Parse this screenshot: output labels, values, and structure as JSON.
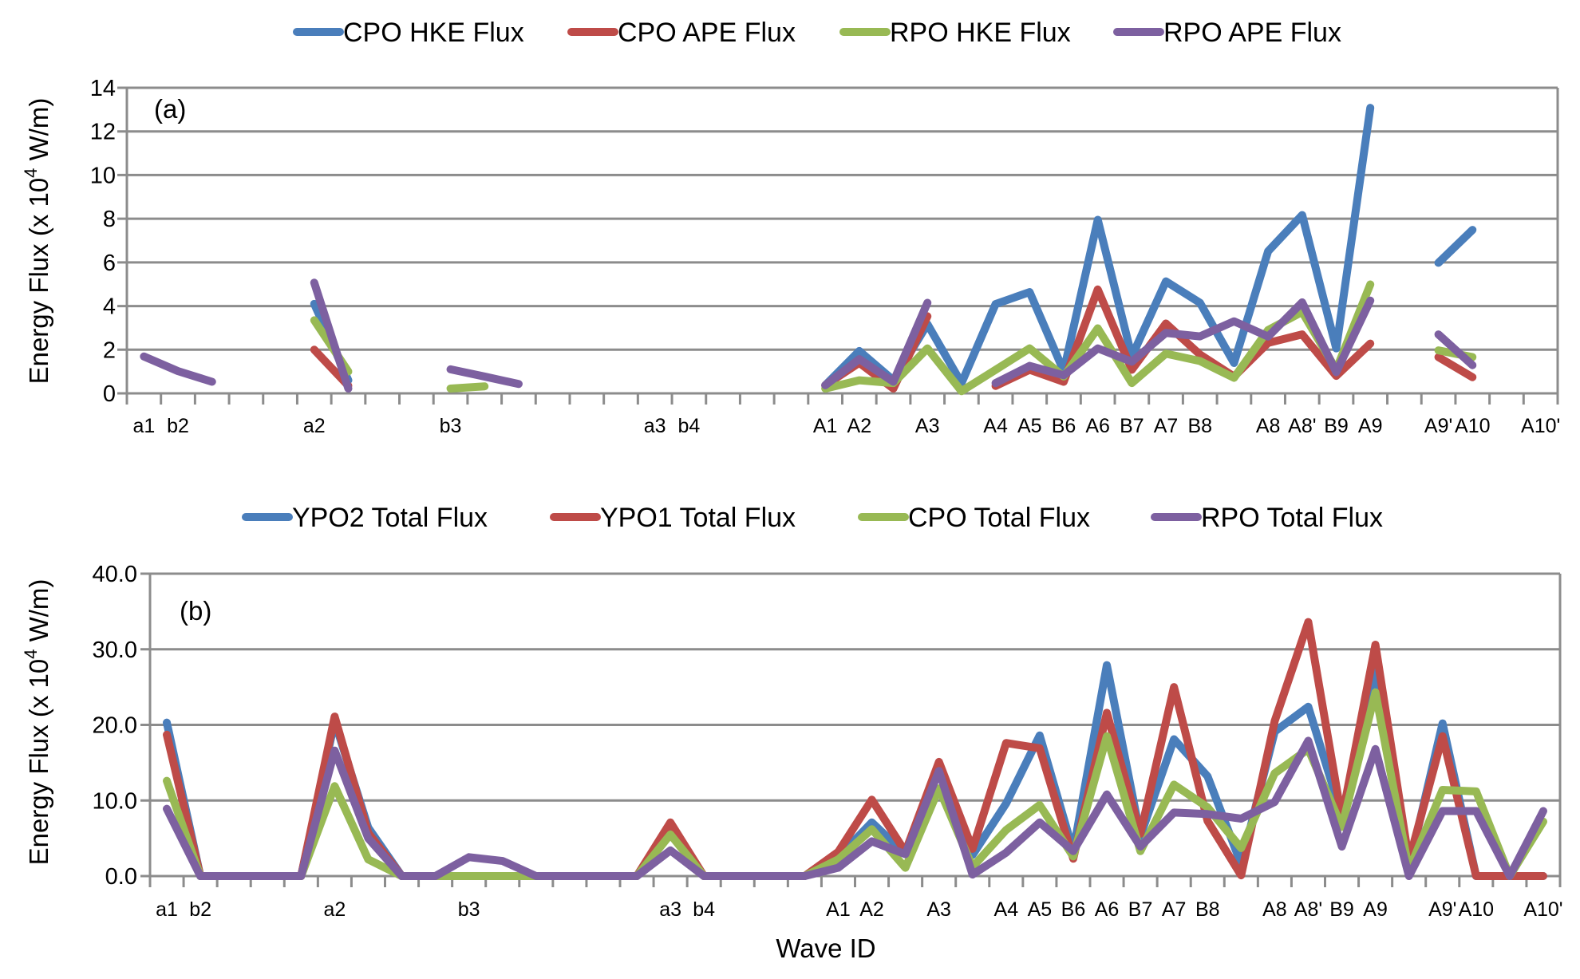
{
  "chart_data": [
    {
      "type": "line",
      "panel_label": "(a)",
      "title": "",
      "xlabel": "",
      "ylabel": "Energy Flux (x 10^4 W/m)",
      "ylabel_parts": {
        "pre": "Energy Flux (x 10",
        "sup": "4",
        "post": " W/m)"
      },
      "ylim": [
        0,
        14
      ],
      "yticks": [
        0,
        2,
        4,
        6,
        8,
        10,
        12,
        14
      ],
      "ytick_labels": [
        "0",
        "2",
        "4",
        "6",
        "8",
        "10",
        "12",
        "14"
      ],
      "grid": true,
      "legend_position": "top",
      "category_count": 42,
      "x_tick_labels": [
        {
          "index": 0,
          "label": "a1"
        },
        {
          "index": 1,
          "label": "b2"
        },
        {
          "index": 5,
          "label": "a2"
        },
        {
          "index": 9,
          "label": "b3"
        },
        {
          "index": 15,
          "label": "a3"
        },
        {
          "index": 16,
          "label": "b4"
        },
        {
          "index": 20,
          "label": "A1"
        },
        {
          "index": 21,
          "label": "A2"
        },
        {
          "index": 23,
          "label": "A3"
        },
        {
          "index": 25,
          "label": "A4"
        },
        {
          "index": 26,
          "label": "A5"
        },
        {
          "index": 27,
          "label": "B6"
        },
        {
          "index": 28,
          "label": "A6"
        },
        {
          "index": 29,
          "label": "B7"
        },
        {
          "index": 30,
          "label": "A7"
        },
        {
          "index": 31,
          "label": "B8"
        },
        {
          "index": 33,
          "label": "A8"
        },
        {
          "index": 34,
          "label": "A8'"
        },
        {
          "index": 35,
          "label": "B9"
        },
        {
          "index": 36,
          "label": "A9"
        },
        {
          "index": 38,
          "label": "A9'"
        },
        {
          "index": 39,
          "label": "A10"
        },
        {
          "index": 41,
          "label": "A10'"
        }
      ],
      "series": [
        {
          "name": "CPO HKE Flux",
          "color": "#4a7ebb",
          "values": [
            null,
            null,
            null,
            null,
            null,
            4.1,
            0.6,
            null,
            null,
            null,
            null,
            null,
            null,
            null,
            null,
            null,
            null,
            null,
            null,
            null,
            0.37,
            1.94,
            0.6,
            3.17,
            0.47,
            4.09,
            4.64,
            1.02,
            7.95,
            1.69,
            5.13,
            4.15,
            1.39,
            6.51,
            8.17,
            2.06,
            13.08,
            null,
            5.98,
            7.49,
            null,
            null
          ]
        },
        {
          "name": "CPO APE Flux",
          "color": "#be4b48",
          "values": [
            null,
            null,
            null,
            null,
            null,
            2.0,
            0.35,
            null,
            null,
            null,
            null,
            null,
            null,
            null,
            null,
            null,
            null,
            null,
            null,
            null,
            0.37,
            1.4,
            0.22,
            3.53,
            null,
            0.34,
            1.08,
            0.53,
            4.76,
            1.08,
            3.2,
            1.78,
            0.77,
            2.31,
            2.7,
            0.8,
            2.28,
            null,
            1.66,
            0.74,
            null,
            null
          ]
        },
        {
          "name": "RPO HKE Flux",
          "color": "#98b954",
          "values": [
            null,
            null,
            null,
            null,
            null,
            3.35,
            1.0,
            null,
            null,
            0.22,
            0.32,
            null,
            null,
            null,
            null,
            null,
            null,
            null,
            null,
            null,
            0.22,
            0.6,
            0.47,
            2.06,
            0.1,
            1.08,
            2.06,
            0.77,
            2.98,
            0.47,
            1.82,
            1.48,
            0.71,
            2.9,
            3.73,
            1.08,
            4.99,
            null,
            1.97,
            1.66,
            null,
            null
          ]
        },
        {
          "name": "RPO APE Flux",
          "color": "#7d60a0",
          "values": [
            1.69,
            1.02,
            0.53,
            null,
            null,
            5.07,
            0.22,
            null,
            null,
            1.1,
            0.77,
            0.43,
            null,
            null,
            null,
            null,
            null,
            null,
            null,
            null,
            0.37,
            1.57,
            0.53,
            4.15,
            null,
            0.47,
            1.26,
            0.83,
            2.06,
            1.45,
            2.77,
            2.61,
            3.3,
            2.6,
            4.17,
            0.97,
            4.25,
            null,
            2.7,
            1.29,
            null,
            null
          ]
        }
      ]
    },
    {
      "type": "line",
      "panel_label": "(b)",
      "title": "",
      "xlabel": "Wave ID",
      "ylabel": "Energy Flux (x 10^4 W/m)",
      "ylabel_parts": {
        "pre": "Energy Flux (x 10",
        "sup": "4",
        "post": " W/m)"
      },
      "ylim": [
        0,
        40
      ],
      "yticks": [
        0,
        10,
        20,
        30,
        40
      ],
      "ytick_labels": [
        "0.0",
        "10.0",
        "20.0",
        "30.0",
        "40.0"
      ],
      "grid": true,
      "legend_position": "top",
      "category_count": 42,
      "x_tick_labels": [
        {
          "index": 0,
          "label": "a1"
        },
        {
          "index": 1,
          "label": "b2"
        },
        {
          "index": 5,
          "label": "a2"
        },
        {
          "index": 9,
          "label": "b3"
        },
        {
          "index": 15,
          "label": "a3"
        },
        {
          "index": 16,
          "label": "b4"
        },
        {
          "index": 20,
          "label": "A1"
        },
        {
          "index": 21,
          "label": "A2"
        },
        {
          "index": 23,
          "label": "A3"
        },
        {
          "index": 25,
          "label": "A4"
        },
        {
          "index": 26,
          "label": "A5"
        },
        {
          "index": 27,
          "label": "B6"
        },
        {
          "index": 28,
          "label": "A6"
        },
        {
          "index": 29,
          "label": "B7"
        },
        {
          "index": 30,
          "label": "A7"
        },
        {
          "index": 31,
          "label": "B8"
        },
        {
          "index": 33,
          "label": "A8"
        },
        {
          "index": 34,
          "label": "A8'"
        },
        {
          "index": 35,
          "label": "B9"
        },
        {
          "index": 36,
          "label": "A9"
        },
        {
          "index": 38,
          "label": "A9'"
        },
        {
          "index": 39,
          "label": "A10"
        },
        {
          "index": 41,
          "label": "A10'"
        }
      ],
      "series": [
        {
          "name": "YPO2 Total Flux",
          "color": "#4a7ebb",
          "values": [
            20.3,
            0,
            0,
            0,
            0,
            20.5,
            6.4,
            0,
            0,
            0,
            0,
            0,
            0,
            0,
            0,
            6.5,
            0,
            0,
            0,
            0,
            2.5,
            7.1,
            2.9,
            14.2,
            2.8,
            9.6,
            18.6,
            3.3,
            27.9,
            5.3,
            18.1,
            13.2,
            1.6,
            19.1,
            22.4,
            8.0,
            27.6,
            1.2,
            20.2,
            0,
            0,
            0
          ]
        },
        {
          "name": "YPO1 Total Flux",
          "color": "#be4b48",
          "values": [
            18.7,
            0,
            0,
            0,
            0,
            21.1,
            5.7,
            0,
            0,
            0,
            0,
            0,
            0,
            0,
            0,
            7.1,
            0,
            0,
            0,
            0,
            3.2,
            10.1,
            3.2,
            15.1,
            3.6,
            17.6,
            16.9,
            2.3,
            21.6,
            5.6,
            25.0,
            7.3,
            0.1,
            20.5,
            33.6,
            7.6,
            30.6,
            2.0,
            18.5,
            0,
            0,
            0
          ]
        },
        {
          "name": "CPO Total Flux",
          "color": "#98b954",
          "values": [
            12.6,
            0,
            0,
            0,
            0,
            11.9,
            2.2,
            0,
            0,
            0,
            0,
            0,
            0,
            0,
            0,
            5.5,
            0,
            0,
            0,
            0,
            2.2,
            6.2,
            1.1,
            11.6,
            1.2,
            6.1,
            9.4,
            2.6,
            18.5,
            3.3,
            12.1,
            9.1,
            3.7,
            13.6,
            16.8,
            6.5,
            24.3,
            0.8,
            11.4,
            11.2,
            0,
            7.2
          ]
        },
        {
          "name": "RPO Total Flux",
          "color": "#7d60a0",
          "values": [
            8.9,
            0,
            0,
            0,
            0,
            16.6,
            5.0,
            0,
            0,
            2.5,
            2.0,
            0,
            0,
            0,
            0,
            3.4,
            0,
            0,
            0,
            0,
            1.1,
            4.6,
            2.9,
            13.9,
            0.2,
            3.1,
            7.1,
            3.3,
            10.8,
            3.9,
            8.4,
            8.2,
            7.6,
            9.8,
            17.9,
            3.9,
            16.8,
            0,
            8.6,
            8.6,
            0,
            8.6
          ]
        }
      ]
    }
  ]
}
